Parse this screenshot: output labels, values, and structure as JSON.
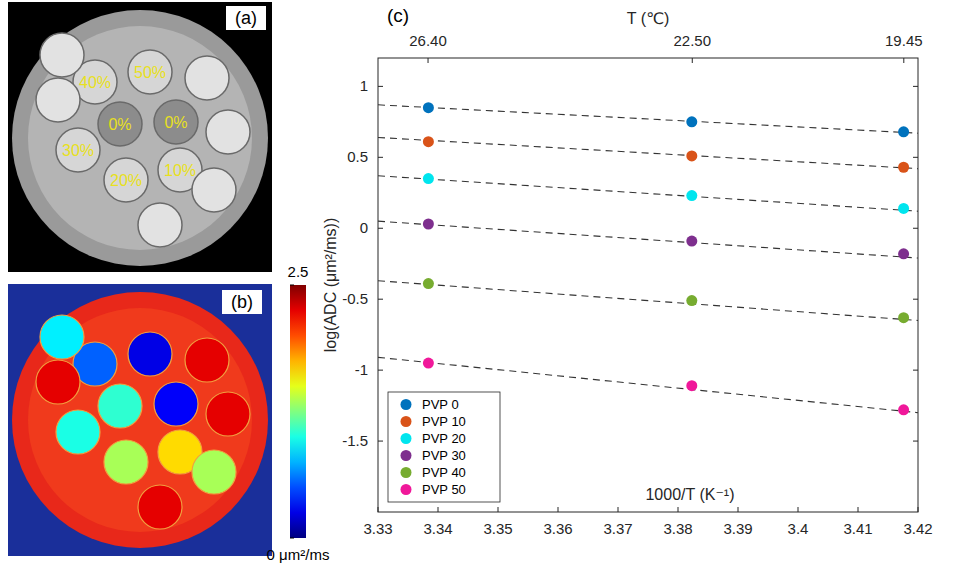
{
  "panel_a": {
    "letter": "(a)",
    "labels": [
      "40%",
      "50%",
      "0%",
      "0%",
      "30%",
      "20%",
      "10%"
    ]
  },
  "panel_b": {
    "letter": "(b)",
    "region_values": [
      0.55,
      0.25,
      1.05,
      0.3,
      1.0,
      1.35,
      1.65,
      2.25,
      0.9,
      2.25,
      2.25,
      1.35,
      2.25
    ],
    "colorbar": {
      "range": [
        0,
        2.5
      ],
      "ticks": [
        {
          "value": 0,
          "label": "0 μm²/ms"
        },
        2.5
      ]
    }
  },
  "chart_data": {
    "type": "scatter",
    "panel_label": "(c)",
    "x_label": "1000/T (K⁻¹)",
    "y_label": "log(ADC (μm²/ms))",
    "x": [
      3.3384,
      3.3823,
      3.4176
    ],
    "xlim": [
      3.33,
      3.42
    ],
    "xticks": [
      3.33,
      3.34,
      3.35,
      3.36,
      3.37,
      3.38,
      3.39,
      3.4,
      3.41,
      3.42
    ],
    "ylim": [
      -2,
      1.2
    ],
    "yticks": [
      -1.5,
      -1,
      -0.5,
      0,
      0.5,
      1
    ],
    "top_axis": {
      "label": "T (℃)",
      "ticks": [
        {
          "value": 26.4,
          "label": "26.40"
        },
        {
          "value": 22.5,
          "label": "22.50"
        },
        {
          "value": 19.45,
          "label": "19.45"
        }
      ]
    },
    "fit_x": [
      3.33,
      3.42
    ],
    "series": [
      {
        "name": "PVP 0",
        "color": "#0072BD",
        "values": [
          0.85,
          0.75,
          0.68
        ],
        "fit": [
          0.87,
          0.67
        ]
      },
      {
        "name": "PVP 10",
        "color": "#D95319",
        "values": [
          0.61,
          0.51,
          0.43
        ],
        "fit": [
          0.64,
          0.42
        ]
      },
      {
        "name": "PVP 20",
        "color": "#00E5EE",
        "values": [
          0.35,
          0.23,
          0.14
        ],
        "fit": [
          0.37,
          0.12
        ]
      },
      {
        "name": "PVP 30",
        "color": "#7E2F8E",
        "values": [
          0.03,
          -0.09,
          -0.18
        ],
        "fit": [
          0.05,
          -0.21
        ]
      },
      {
        "name": "PVP 40",
        "color": "#77AC30",
        "values": [
          -0.39,
          -0.51,
          -0.63
        ],
        "fit": [
          -0.37,
          -0.65
        ]
      },
      {
        "name": "PVP 50",
        "color": "#F0189A",
        "values": [
          -0.95,
          -1.11,
          -1.28
        ],
        "fit": [
          -0.91,
          -1.3
        ]
      }
    ],
    "legend": "lower left",
    "marker": "circle",
    "line_style": "dashed",
    "grid": false
  }
}
